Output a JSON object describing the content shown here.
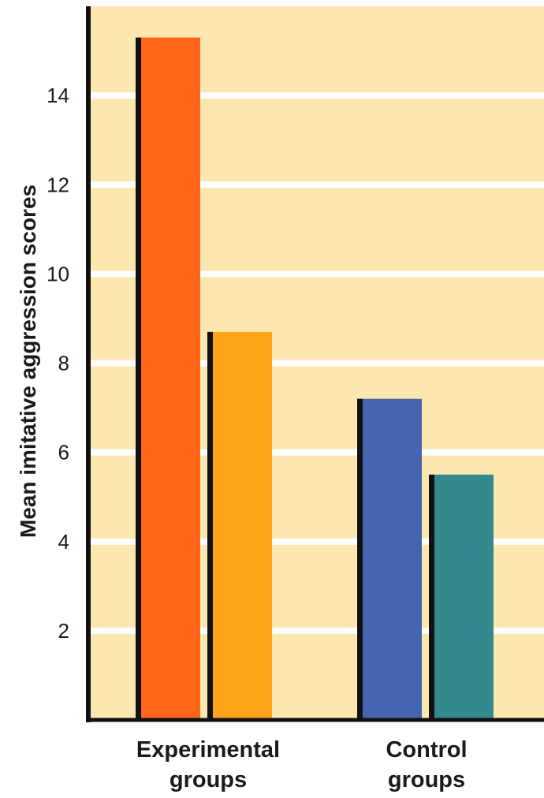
{
  "chart_data": {
    "type": "bar",
    "ylabel": "Mean imitative aggression scores",
    "xlabel": "",
    "ylim": [
      0,
      16
    ],
    "yticks": [
      2,
      4,
      6,
      8,
      10,
      12,
      14
    ],
    "grid": true,
    "categories": [
      {
        "label_lines": [
          "Experimental",
          "groups"
        ]
      },
      {
        "label_lines": [
          "Control",
          "groups"
        ]
      }
    ],
    "bars": [
      {
        "group": 0,
        "value": 15.3,
        "color": "#ff6418"
      },
      {
        "group": 0,
        "value": 8.7,
        "color": "#ffa318"
      },
      {
        "group": 1,
        "value": 7.2,
        "color": "#4565b0"
      },
      {
        "group": 1,
        "value": 5.5,
        "color": "#35898e"
      }
    ],
    "colors": {
      "plot_background": "#fde7b1",
      "gridline": "#ffffff",
      "axis": "#111111"
    }
  }
}
